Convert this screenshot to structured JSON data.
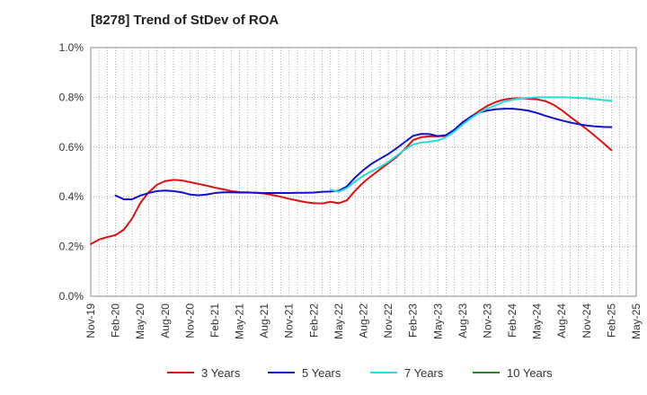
{
  "chart_data": {
    "type": "line",
    "title": "[8278]  Trend of StDev of ROA",
    "xlabel": "",
    "ylabel": "",
    "x_tick_labels": [
      "Nov-19",
      "Feb-20",
      "May-20",
      "Aug-20",
      "Nov-20",
      "Feb-21",
      "May-21",
      "Aug-21",
      "Nov-21",
      "Feb-22",
      "May-22",
      "Aug-22",
      "Nov-22",
      "Feb-23",
      "May-23",
      "Aug-23",
      "Nov-23",
      "Feb-24",
      "May-24",
      "Aug-24",
      "Nov-24",
      "Feb-25",
      "May-25"
    ],
    "x_range_months": [
      0,
      66
    ],
    "ylim": [
      0,
      1.0
    ],
    "y_ticks": [
      0,
      0.2,
      0.4,
      0.6,
      0.8,
      1.0
    ],
    "y_tick_labels": [
      "0.0%",
      "0.2%",
      "0.4%",
      "0.6%",
      "0.8%",
      "1.0%"
    ],
    "grid": true,
    "legend_position": "bottom",
    "series": [
      {
        "name": "3 Years",
        "color": "#dd1111",
        "points": [
          [
            0,
            0.21
          ],
          [
            1,
            0.228
          ],
          [
            2,
            0.238
          ],
          [
            3,
            0.246
          ],
          [
            4,
            0.268
          ],
          [
            5,
            0.312
          ],
          [
            6,
            0.375
          ],
          [
            7,
            0.418
          ],
          [
            8,
            0.448
          ],
          [
            9,
            0.463
          ],
          [
            10,
            0.468
          ],
          [
            11,
            0.466
          ],
          [
            12,
            0.459
          ],
          [
            13,
            0.452
          ],
          [
            14,
            0.445
          ],
          [
            15,
            0.437
          ],
          [
            16,
            0.43
          ],
          [
            17,
            0.423
          ],
          [
            18,
            0.419
          ],
          [
            19,
            0.418
          ],
          [
            20,
            0.416
          ],
          [
            21,
            0.413
          ],
          [
            22,
            0.407
          ],
          [
            23,
            0.4
          ],
          [
            24,
            0.392
          ],
          [
            25,
            0.385
          ],
          [
            26,
            0.378
          ],
          [
            27,
            0.374
          ],
          [
            28,
            0.373
          ],
          [
            29,
            0.38
          ],
          [
            30,
            0.374
          ],
          [
            31,
            0.386
          ],
          [
            32,
            0.425
          ],
          [
            33,
            0.458
          ],
          [
            34,
            0.485
          ],
          [
            35,
            0.51
          ],
          [
            36,
            0.535
          ],
          [
            37,
            0.56
          ],
          [
            38,
            0.592
          ],
          [
            39,
            0.628
          ],
          [
            40,
            0.64
          ],
          [
            41,
            0.643
          ],
          [
            42,
            0.643
          ],
          [
            43,
            0.645
          ],
          [
            44,
            0.662
          ],
          [
            45,
            0.695
          ],
          [
            46,
            0.722
          ],
          [
            47,
            0.745
          ],
          [
            48,
            0.766
          ],
          [
            49,
            0.781
          ],
          [
            50,
            0.791
          ],
          [
            51,
            0.795
          ],
          [
            52,
            0.796
          ],
          [
            53,
            0.794
          ],
          [
            54,
            0.792
          ],
          [
            55,
            0.785
          ],
          [
            56,
            0.77
          ],
          [
            57,
            0.748
          ],
          [
            58,
            0.722
          ],
          [
            59,
            0.697
          ],
          [
            60,
            0.672
          ],
          [
            61,
            0.645
          ],
          [
            62,
            0.617
          ],
          [
            63,
            0.587
          ]
        ]
      },
      {
        "name": "5 Years",
        "color": "#1111cc",
        "points": [
          [
            3,
            0.405
          ],
          [
            4,
            0.39
          ],
          [
            5,
            0.39
          ],
          [
            6,
            0.405
          ],
          [
            7,
            0.415
          ],
          [
            8,
            0.423
          ],
          [
            9,
            0.425
          ],
          [
            10,
            0.423
          ],
          [
            11,
            0.418
          ],
          [
            12,
            0.409
          ],
          [
            13,
            0.406
          ],
          [
            14,
            0.409
          ],
          [
            15,
            0.415
          ],
          [
            16,
            0.418
          ],
          [
            17,
            0.418
          ],
          [
            18,
            0.417
          ],
          [
            19,
            0.417
          ],
          [
            20,
            0.416
          ],
          [
            21,
            0.415
          ],
          [
            22,
            0.415
          ],
          [
            23,
            0.415
          ],
          [
            24,
            0.415
          ],
          [
            25,
            0.416
          ],
          [
            26,
            0.416
          ],
          [
            27,
            0.417
          ],
          [
            28,
            0.42
          ],
          [
            29,
            0.421
          ],
          [
            30,
            0.424
          ],
          [
            31,
            0.442
          ],
          [
            32,
            0.478
          ],
          [
            33,
            0.508
          ],
          [
            34,
            0.533
          ],
          [
            35,
            0.553
          ],
          [
            36,
            0.572
          ],
          [
            37,
            0.595
          ],
          [
            38,
            0.62
          ],
          [
            39,
            0.645
          ],
          [
            40,
            0.653
          ],
          [
            41,
            0.652
          ],
          [
            42,
            0.644
          ],
          [
            43,
            0.648
          ],
          [
            44,
            0.67
          ],
          [
            45,
            0.7
          ],
          [
            46,
            0.722
          ],
          [
            47,
            0.738
          ],
          [
            48,
            0.747
          ],
          [
            49,
            0.752
          ],
          [
            50,
            0.754
          ],
          [
            51,
            0.754
          ],
          [
            52,
            0.751
          ],
          [
            53,
            0.746
          ],
          [
            54,
            0.737
          ],
          [
            55,
            0.726
          ],
          [
            56,
            0.716
          ],
          [
            57,
            0.707
          ],
          [
            58,
            0.699
          ],
          [
            59,
            0.692
          ],
          [
            60,
            0.687
          ],
          [
            61,
            0.683
          ],
          [
            62,
            0.681
          ],
          [
            63,
            0.68
          ]
        ]
      },
      {
        "name": "7 Years",
        "color": "#22dddd",
        "points": [
          [
            29,
            0.428
          ],
          [
            30,
            0.42
          ],
          [
            31,
            0.435
          ],
          [
            32,
            0.462
          ],
          [
            33,
            0.485
          ],
          [
            34,
            0.503
          ],
          [
            35,
            0.52
          ],
          [
            36,
            0.54
          ],
          [
            37,
            0.565
          ],
          [
            38,
            0.59
          ],
          [
            39,
            0.61
          ],
          [
            40,
            0.618
          ],
          [
            41,
            0.622
          ],
          [
            42,
            0.626
          ],
          [
            43,
            0.64
          ],
          [
            44,
            0.662
          ],
          [
            45,
            0.69
          ],
          [
            46,
            0.716
          ],
          [
            47,
            0.738
          ],
          [
            48,
            0.755
          ],
          [
            49,
            0.768
          ],
          [
            50,
            0.782
          ],
          [
            51,
            0.79
          ],
          [
            52,
            0.795
          ],
          [
            53,
            0.798
          ],
          [
            54,
            0.8
          ],
          [
            55,
            0.8
          ],
          [
            56,
            0.8
          ],
          [
            57,
            0.8
          ],
          [
            58,
            0.799
          ],
          [
            59,
            0.798
          ],
          [
            60,
            0.796
          ],
          [
            61,
            0.793
          ],
          [
            62,
            0.789
          ],
          [
            63,
            0.786
          ]
        ]
      },
      {
        "name": "10 Years",
        "color": "#228822",
        "points": []
      }
    ]
  }
}
